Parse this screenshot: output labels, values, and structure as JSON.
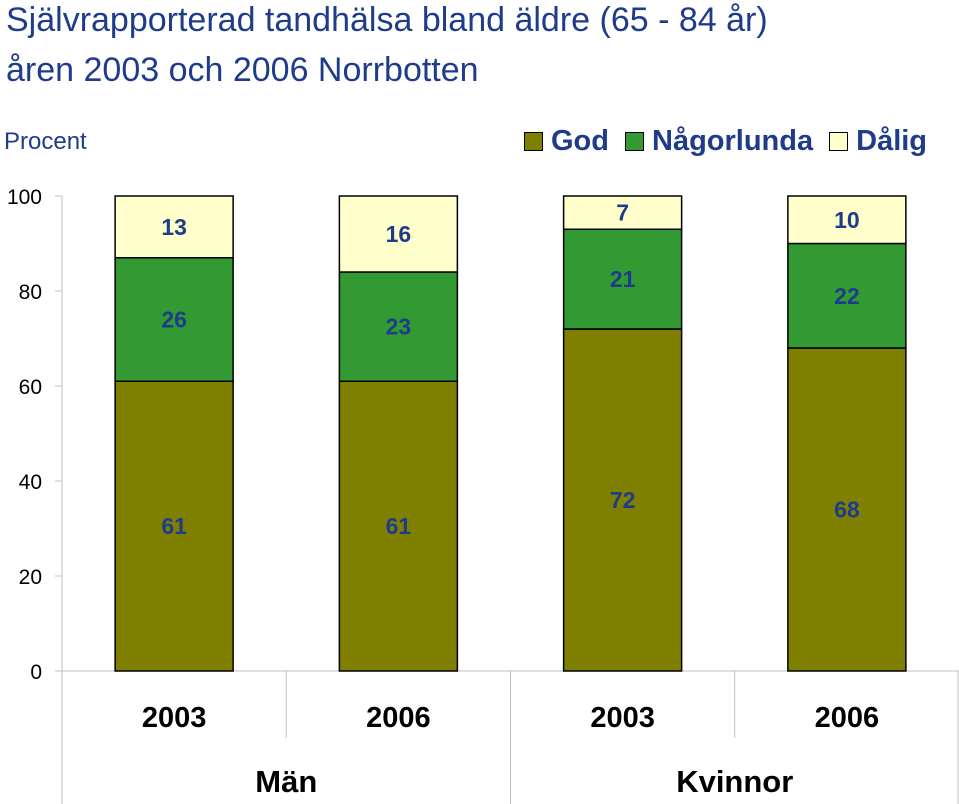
{
  "title": {
    "line1": "Självrapporterad tandhälsa bland äldre (65 - 84 år)",
    "line2": "åren 2003 och 2006 Norrbotten"
  },
  "colors": {
    "god": "#808000",
    "nagorlunda": "#339933",
    "dalig": "#ffffcc",
    "label": "#1f3c8a"
  },
  "chart_data": {
    "type": "bar",
    "stacked": true,
    "title": "Självrapporterad tandhälsa bland äldre (65 - 84 år) åren 2003 och 2006 Norrbotten",
    "ylabel": "Procent",
    "xlabel": "",
    "ylim": [
      0,
      100
    ],
    "yticks": [
      "0",
      "20",
      "40",
      "60",
      "80",
      "100"
    ],
    "categories": [
      "2003",
      "2006",
      "2003",
      "2006"
    ],
    "groups": [
      {
        "label": "Män",
        "span": [
          0,
          1
        ]
      },
      {
        "label": "Kvinnor",
        "span": [
          2,
          3
        ]
      }
    ],
    "legend_position": "top-right",
    "grid": false,
    "series": [
      {
        "name": "God",
        "color": "#808000",
        "values": [
          61,
          61,
          72,
          68
        ]
      },
      {
        "name": "Någorlunda",
        "color": "#339933",
        "values": [
          26,
          23,
          21,
          22
        ]
      },
      {
        "name": "Dålig",
        "color": "#ffffcc",
        "values": [
          13,
          16,
          7,
          10
        ]
      }
    ]
  }
}
